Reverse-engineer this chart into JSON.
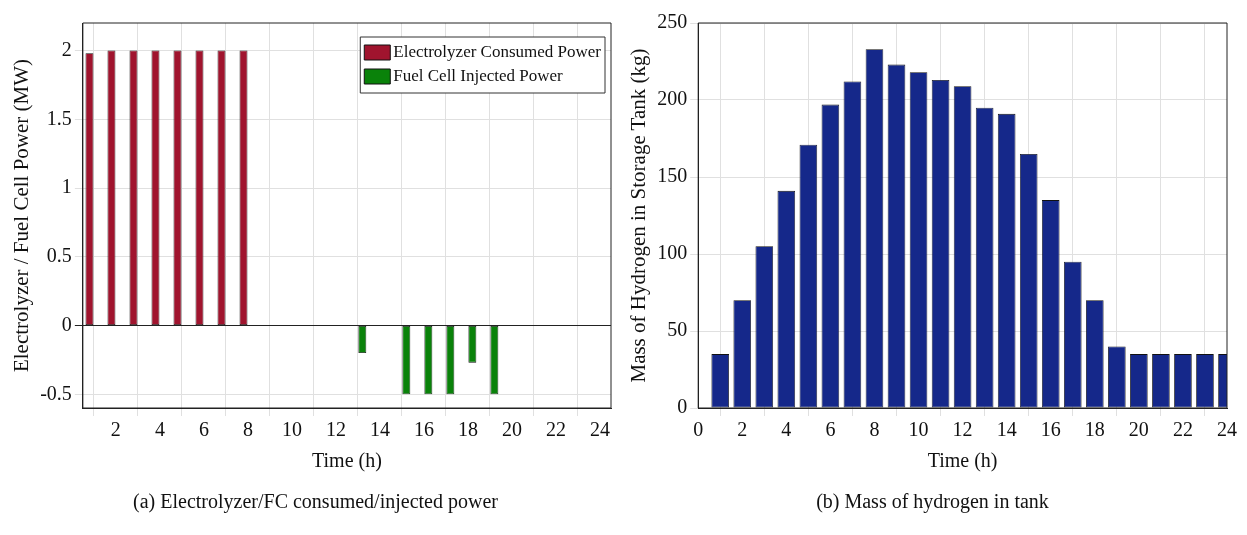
{
  "chart_data": [
    {
      "type": "bar",
      "title": "(a) Electrolyzer/FC consumed/injected power",
      "xlabel": "Time (h)",
      "ylabel": "Electrolyzer / Fuel Cell Power (MW)",
      "x": [
        1,
        2,
        3,
        4,
        5,
        6,
        7,
        8,
        9,
        10,
        11,
        12,
        13,
        14,
        15,
        16,
        17,
        18,
        19,
        20,
        21,
        22,
        23,
        24
      ],
      "xlim": [
        0.5,
        24.5
      ],
      "xticks": [
        2,
        4,
        6,
        8,
        10,
        12,
        14,
        16,
        18,
        20,
        22,
        24
      ],
      "series": [
        {
          "name": "Electrolyzer Consumed Power",
          "color": "#a0142e",
          "values": [
            1.98,
            2,
            2,
            2,
            2,
            2,
            2,
            2,
            0,
            0,
            0,
            0,
            0,
            0,
            0,
            0,
            0,
            0,
            0,
            0,
            0,
            0,
            0,
            0
          ]
        },
        {
          "name": "Fuel Cell Injected Power",
          "color": "#0a820a",
          "values": [
            0,
            0,
            0,
            0,
            0,
            0,
            0,
            0,
            0,
            0,
            0,
            0,
            -0.2,
            0,
            -0.5,
            -0.5,
            -0.5,
            -0.27,
            -0.5,
            0,
            0,
            0,
            0,
            0
          ]
        }
      ],
      "ylim": [
        -0.6,
        2.2
      ],
      "yticks": [
        -0.5,
        0,
        0.5,
        1,
        1.5,
        2
      ],
      "grid": true,
      "legend": "top right"
    },
    {
      "type": "bar",
      "title": "(b) Mass of hydrogen in tank",
      "xlabel": "Time (h)",
      "ylabel": "Mass of Hydrogen in Storage Tank (kg)",
      "x": [
        1,
        2,
        3,
        4,
        5,
        6,
        7,
        8,
        9,
        10,
        11,
        12,
        13,
        14,
        15,
        16,
        17,
        18,
        19,
        20,
        21,
        22,
        23,
        24
      ],
      "series": [
        {
          "color": "#15288a",
          "values": [
            35,
            70,
            105,
            141,
            171,
            197,
            212,
            233,
            223,
            218,
            213,
            209,
            195,
            191,
            165,
            135,
            95,
            70,
            40,
            35,
            35,
            35,
            35,
            35
          ]
        }
      ],
      "xlim": [
        0,
        24
      ],
      "xticks": [
        0,
        2,
        4,
        6,
        8,
        10,
        12,
        14,
        16,
        18,
        20,
        22,
        24
      ],
      "ylim": [
        0,
        250
      ],
      "yticks": [
        0,
        50,
        100,
        150,
        200,
        250
      ],
      "grid": true
    }
  ]
}
